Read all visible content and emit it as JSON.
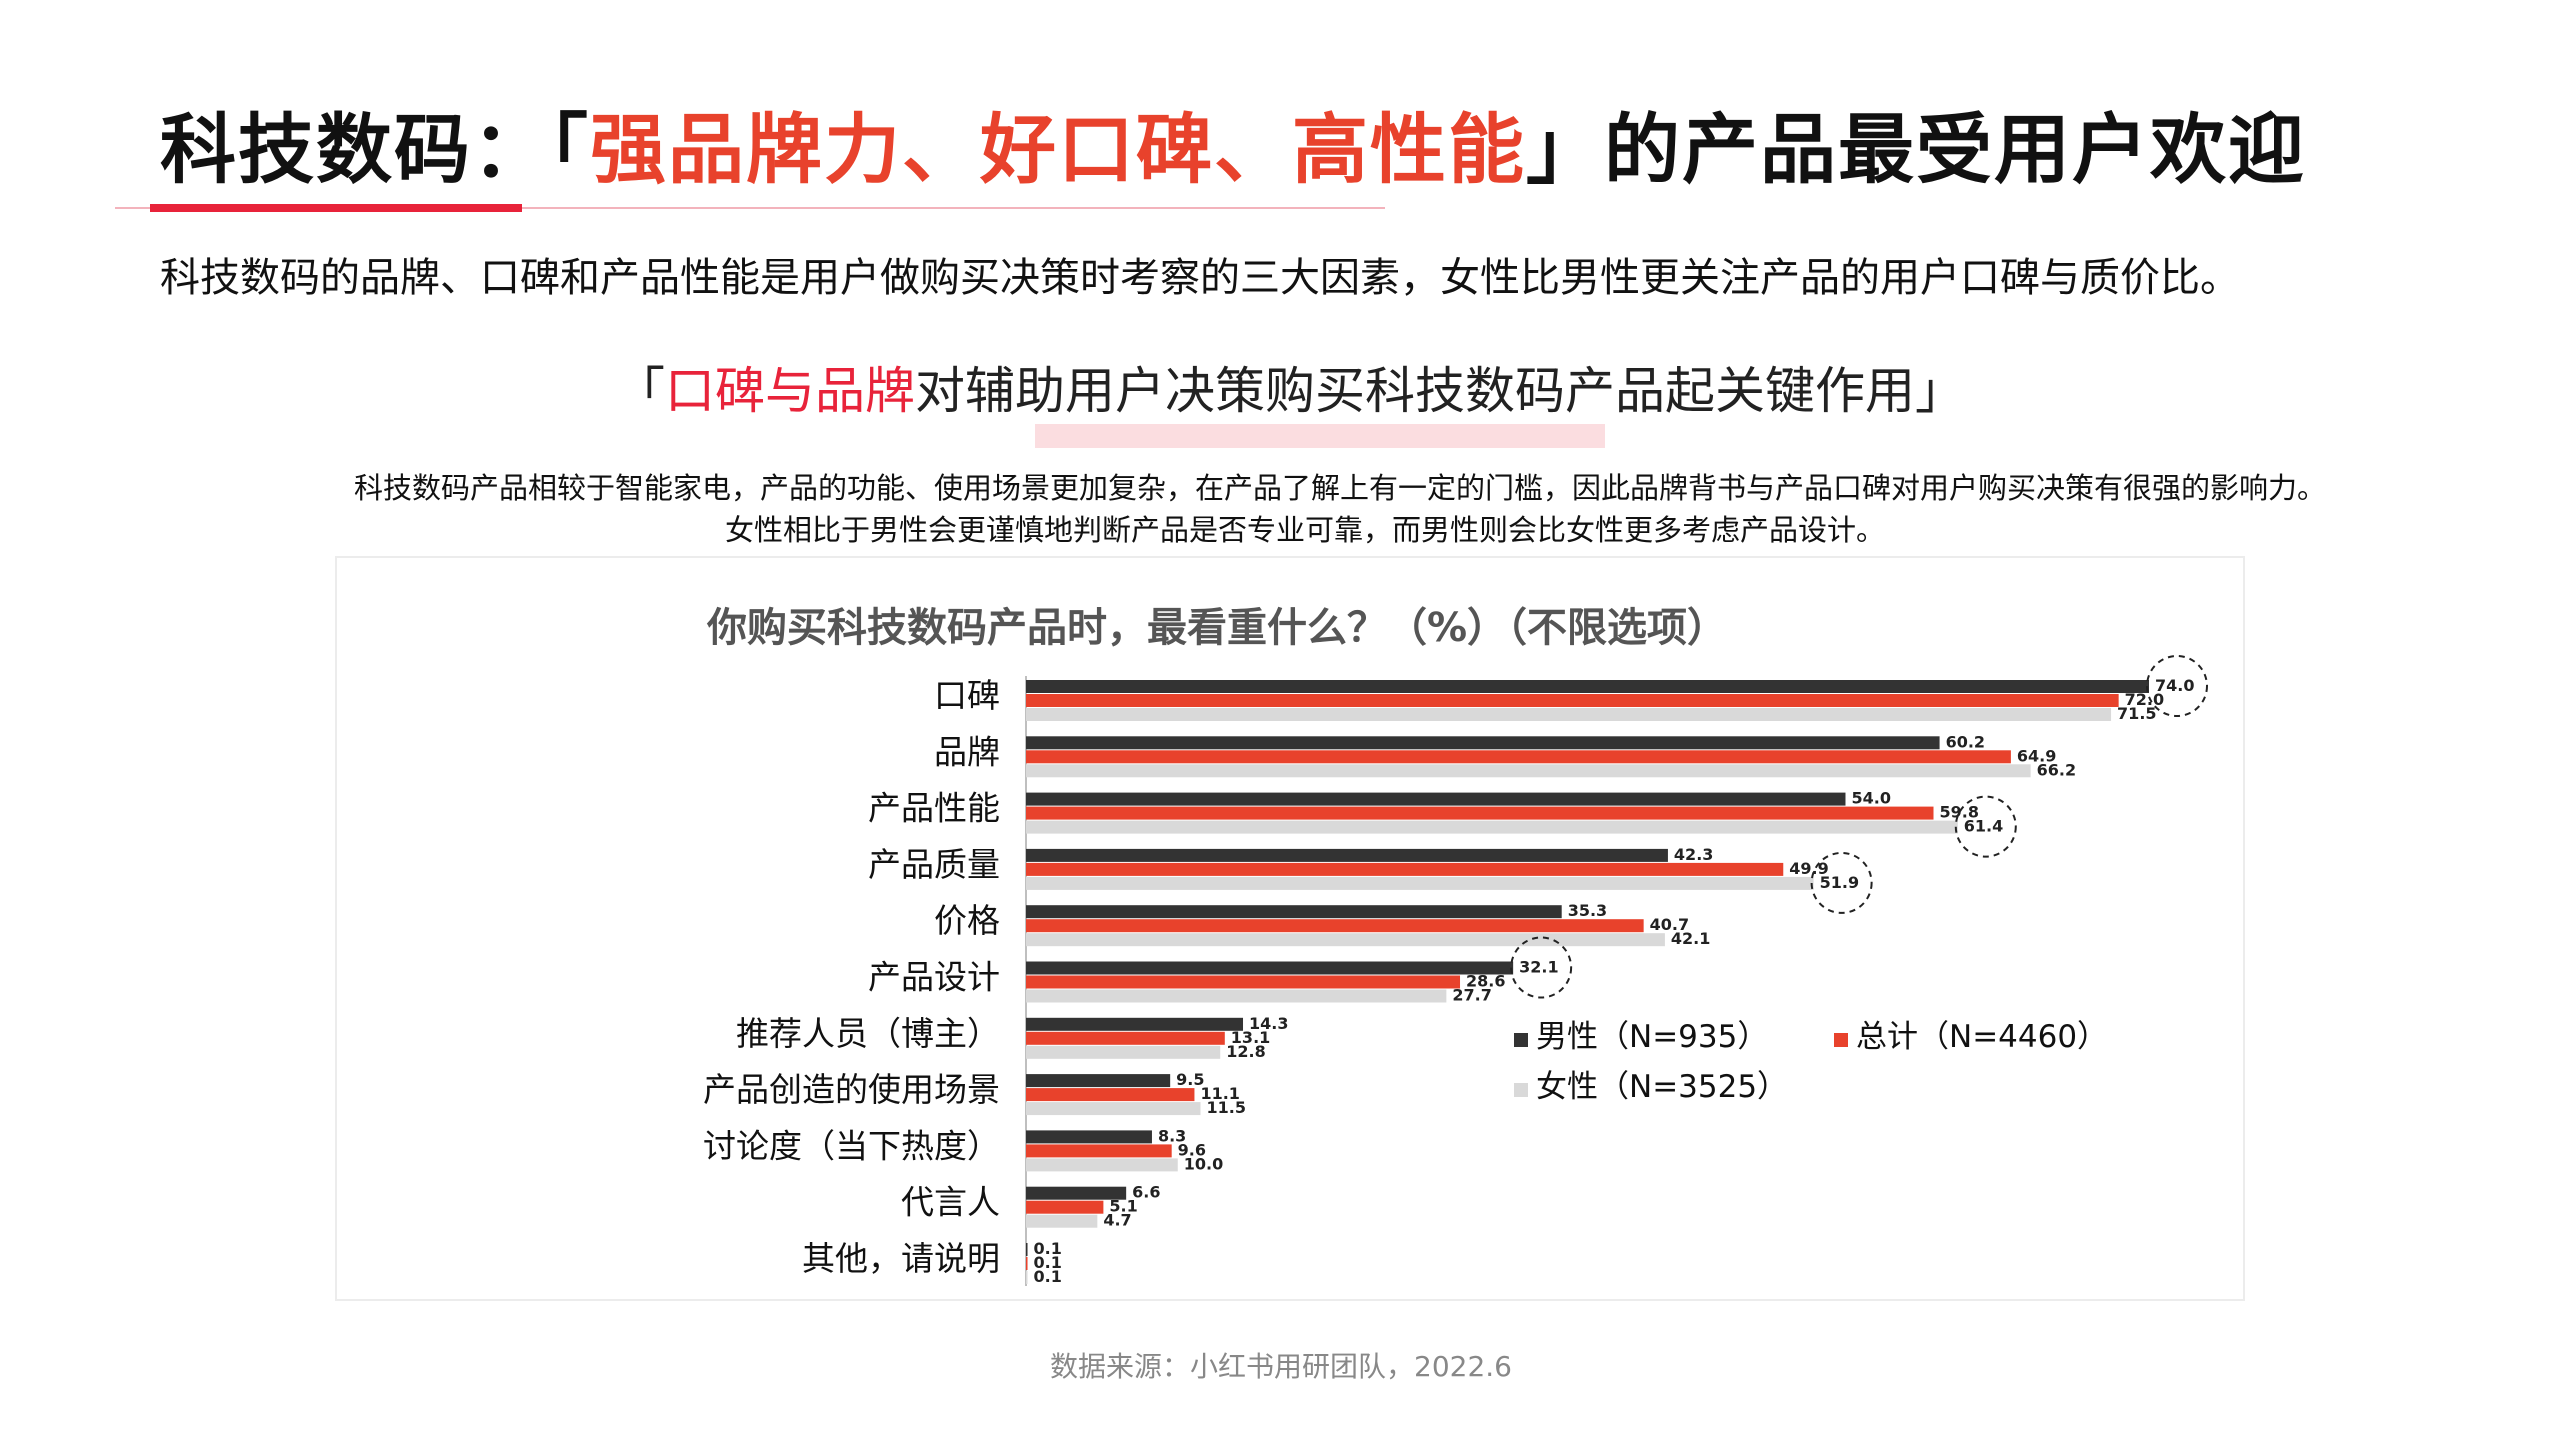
{
  "title": {
    "prefix": "科技数码：「",
    "highlight": "强品牌力、好口碑、高性能",
    "suffix": "」的产品最受用户欢迎"
  },
  "subtitle": "科技数码的品牌、口碑和产品性能是用户做购买决策时考察的三大因素，女性比男性更关注产品的用户口碑与质价比。",
  "tagline": {
    "open": "「",
    "highlight": "口碑与品牌",
    "rest": "对辅助用户决策购买科技数码产品起关键作用",
    "close": "」"
  },
  "description": {
    "line1": "科技数码产品相较于智能家电，产品的功能、使用场景更加复杂，在产品了解上有一定的门槛，因此品牌背书与产品口碑对用户购买决策有很强的影响力。",
    "line2": "女性相比于男性会更谨慎地判断产品是否专业可靠，而男性则会比女性更多考虑产品设计。"
  },
  "source": "数据来源：小红书用研团队，2022.6",
  "colors": {
    "male": "#333333",
    "total": "#e8422c",
    "female": "#d9d9d9",
    "accent": "#e8233a"
  },
  "chart_data": {
    "type": "bar",
    "orientation": "horizontal",
    "title": "你购买科技数码产品时，最看重什么？（%）（不限选项）",
    "categories": [
      "口碑",
      "品牌",
      "产品性能",
      "产品质量",
      "价格",
      "产品设计",
      "推荐人员（博主）",
      "产品创造的使用场景",
      "讨论度（当下热度）",
      "代言人",
      "其他，请说明"
    ],
    "series": [
      {
        "name": "男性（N=935）",
        "values": [
          74.0,
          60.2,
          54.0,
          42.3,
          35.3,
          32.1,
          14.3,
          9.5,
          8.3,
          6.6,
          0.1
        ]
      },
      {
        "name": "总计（N=4460）",
        "values": [
          72.0,
          64.9,
          59.8,
          49.9,
          40.7,
          28.6,
          13.1,
          11.1,
          9.6,
          5.1,
          0.1
        ]
      },
      {
        "name": "女性（N=3525）",
        "values": [
          71.5,
          66.2,
          61.4,
          51.9,
          42.1,
          27.7,
          12.8,
          11.5,
          10.0,
          4.7,
          0.1
        ]
      }
    ],
    "value_labels": [
      [
        "74.0",
        "72.0",
        "71.5"
      ],
      [
        "60.2",
        "64.9",
        "66.2"
      ],
      [
        "54.0",
        "59.8",
        "61.4"
      ],
      [
        "42.3",
        "49.9",
        "51.9"
      ],
      [
        "35.3",
        "40.7",
        "42.1"
      ],
      [
        "32.1",
        "28.6",
        "27.7"
      ],
      [
        "14.3",
        "13.1",
        "12.8"
      ],
      [
        "9.5",
        "11.1",
        "11.5"
      ],
      [
        "8.3",
        "9.6",
        "10.0"
      ],
      [
        "6.6",
        "5.1",
        "4.7"
      ],
      [
        "0.1",
        "0.1",
        "0.1"
      ]
    ],
    "highlighted": [
      {
        "category": "口碑",
        "series": "男性（N=935）"
      },
      {
        "category": "产品性能",
        "series": "女性（N=3525）"
      },
      {
        "category": "产品质量",
        "series": "女性（N=3525）"
      },
      {
        "category": "产品设计",
        "series": "男性（N=935）"
      }
    ],
    "xlim": [
      0,
      74
    ],
    "grid": false,
    "legend_position": "right"
  }
}
